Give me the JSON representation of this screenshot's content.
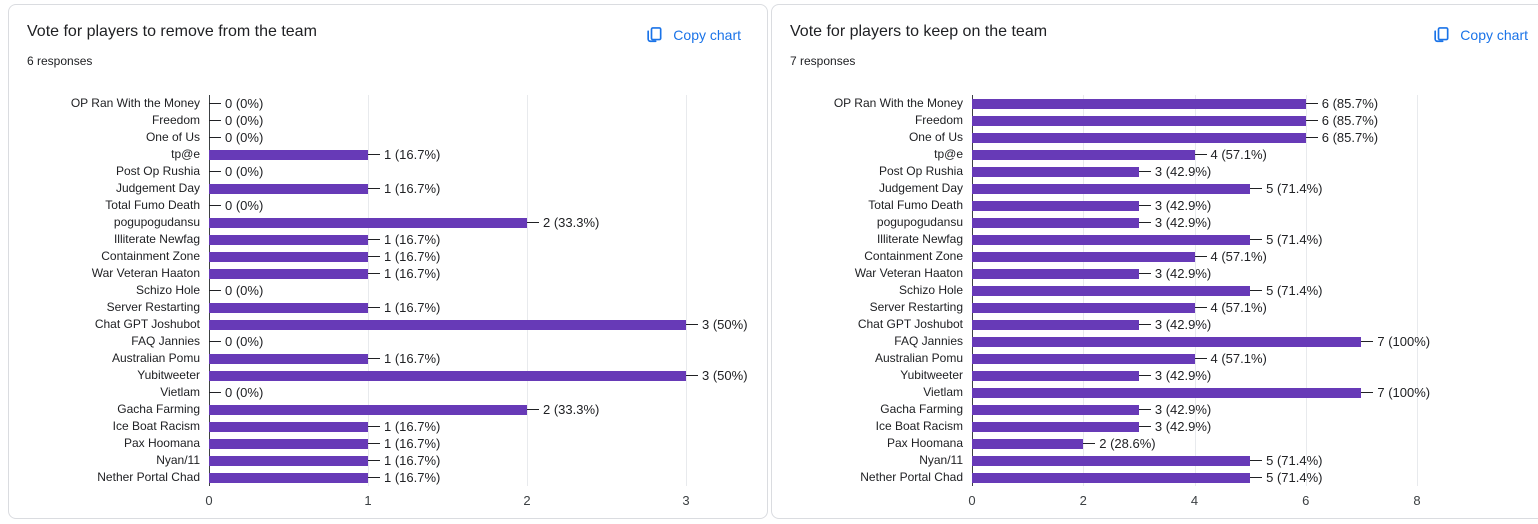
{
  "colors": {
    "bar": "#673ab7",
    "link": "#1a73e8",
    "grid": "#e8eaed",
    "axis": "#3c4043",
    "text": "#202124",
    "card_border": "#dadce0"
  },
  "icons": {
    "copy": "copy-chart-icon"
  },
  "cards": [
    {
      "title": "Vote for players to remove from the team",
      "responses": "6 responses",
      "copy_label": "Copy chart"
    },
    {
      "title": "Vote for players to keep on the team",
      "responses": "7 responses",
      "copy_label": "Copy chart"
    }
  ],
  "chart_data": [
    {
      "type": "bar",
      "orientation": "horizontal",
      "title": "Vote for players to remove from the team",
      "responses_count": 6,
      "categories": [
        "OP Ran With the Money",
        "Freedom",
        "One of Us",
        "tp@e",
        "Post Op Rushia",
        "Judgement Day",
        "Total Fumo Death",
        "pogupogudansu",
        "Illiterate Newfag",
        "Containment Zone",
        "War Veteran Haaton",
        "Schizo Hole",
        "Server Restarting",
        "Chat GPT Joshubot",
        "FAQ Jannies",
        "Australian Pomu",
        "Yubitweeter",
        "Vietlam",
        "Gacha Farming",
        "Ice Boat Racism",
        "Pax Hoomana",
        "Nyan/11",
        "Nether Portal Chad"
      ],
      "values": [
        0,
        0,
        0,
        1,
        0,
        1,
        0,
        2,
        1,
        1,
        1,
        0,
        1,
        3,
        0,
        1,
        3,
        0,
        2,
        1,
        1,
        1,
        1
      ],
      "annotations": [
        "0 (0%)",
        "0 (0%)",
        "0 (0%)",
        "1 (16.7%)",
        "0 (0%)",
        "1 (16.7%)",
        "0 (0%)",
        "2 (33.3%)",
        "1 (16.7%)",
        "1 (16.7%)",
        "1 (16.7%)",
        "0 (0%)",
        "1 (16.7%)",
        "3 (50%)",
        "0 (0%)",
        "1 (16.7%)",
        "3 (50%)",
        "0 (0%)",
        "2 (33.3%)",
        "1 (16.7%)",
        "1 (16.7%)",
        "1 (16.7%)",
        "1 (16.7%)"
      ],
      "xlim": [
        0,
        3
      ],
      "xticks": [
        0,
        1,
        2,
        3
      ],
      "grid": true,
      "bar_color": "#673ab7"
    },
    {
      "type": "bar",
      "orientation": "horizontal",
      "title": "Vote for players to keep on the team",
      "responses_count": 7,
      "categories": [
        "OP Ran With the Money",
        "Freedom",
        "One of Us",
        "tp@e",
        "Post Op Rushia",
        "Judgement Day",
        "Total Fumo Death",
        "pogupogudansu",
        "Illiterate Newfag",
        "Containment Zone",
        "War Veteran Haaton",
        "Schizo Hole",
        "Server Restarting",
        "Chat GPT Joshubot",
        "FAQ Jannies",
        "Australian Pomu",
        "Yubitweeter",
        "Vietlam",
        "Gacha Farming",
        "Ice Boat Racism",
        "Pax Hoomana",
        "Nyan/11",
        "Nether Portal Chad"
      ],
      "values": [
        6,
        6,
        6,
        4,
        3,
        5,
        3,
        3,
        5,
        4,
        3,
        5,
        4,
        3,
        7,
        4,
        3,
        7,
        3,
        3,
        2,
        5,
        5
      ],
      "annotations": [
        "6 (85.7%)",
        "6 (85.7%)",
        "6 (85.7%)",
        "4 (57.1%)",
        "3 (42.9%)",
        "5 (71.4%)",
        "3 (42.9%)",
        "3 (42.9%)",
        "5 (71.4%)",
        "4 (57.1%)",
        "3 (42.9%)",
        "5 (71.4%)",
        "4 (57.1%)",
        "3 (42.9%)",
        "7 (100%)",
        "4 (57.1%)",
        "3 (42.9%)",
        "7 (100%)",
        "3 (42.9%)",
        "3 (42.9%)",
        "2 (28.6%)",
        "5 (71.4%)",
        "5 (71.4%)"
      ],
      "xlim": [
        0,
        8
      ],
      "xticks": [
        0,
        2,
        4,
        6,
        8
      ],
      "grid": true,
      "bar_color": "#673ab7"
    }
  ]
}
